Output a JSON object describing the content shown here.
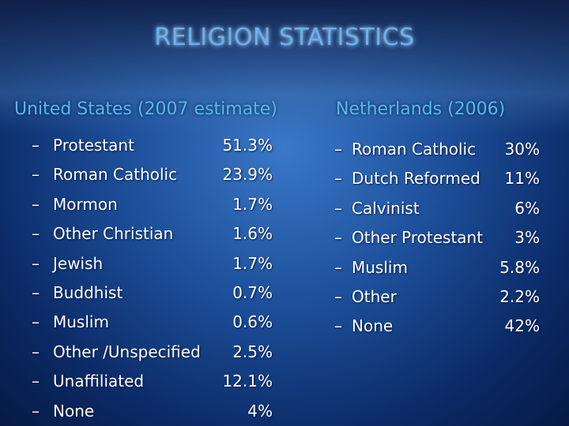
{
  "title": "RELIGION STATISTICS",
  "columns": [
    {
      "heading": "United States (2007 estimate)",
      "items": [
        {
          "label": "Protestant",
          "value": "51.3%"
        },
        {
          "label": "Roman Catholic",
          "value": "23.9%"
        },
        {
          "label": "Mormon",
          "value": "1.7%"
        },
        {
          "label": "Other Christian",
          "value": "1.6%"
        },
        {
          "label": "Jewish",
          "value": "1.7%"
        },
        {
          "label": "Buddhist",
          "value": "0.7%"
        },
        {
          "label": "Muslim",
          "value": "0.6%"
        },
        {
          "label": "Other /Unspecified",
          "value": "2.5%"
        },
        {
          "label": "Unaffiliated",
          "value": "12.1%"
        },
        {
          "label": "None",
          "value": "4%"
        }
      ]
    },
    {
      "heading": "Netherlands (2006)",
      "items": [
        {
          "label": "Roman Catholic",
          "value": "30%"
        },
        {
          "label": "Dutch Reformed",
          "value": "11%"
        },
        {
          "label": "Calvinist",
          "value": "6%"
        },
        {
          "label": "Other Protestant",
          "value": "3%"
        },
        {
          "label": "Muslim",
          "value": "5.8%"
        },
        {
          "label": "Other",
          "value": "2.2%"
        },
        {
          "label": "None",
          "value": "42%"
        }
      ]
    }
  ]
}
